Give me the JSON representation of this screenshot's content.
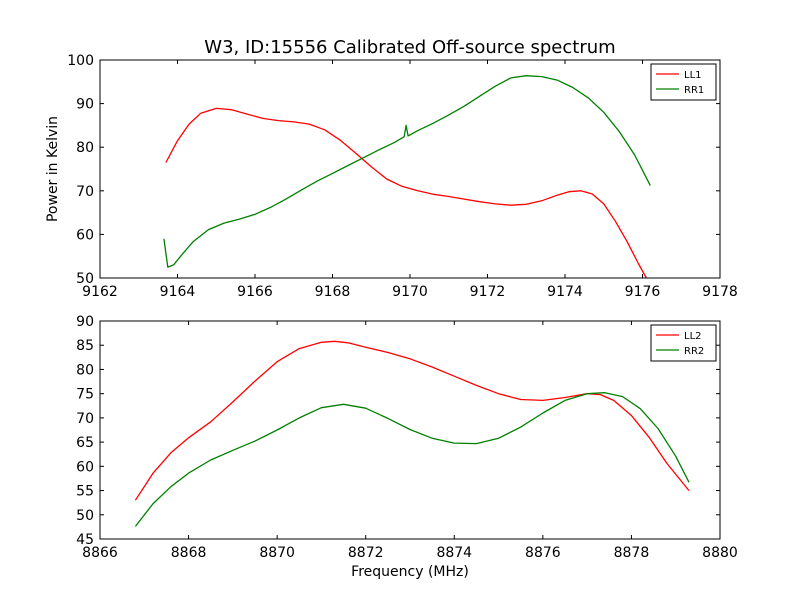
{
  "figure_title": "W3, ID:15556 Calibrated Off-source spectrum",
  "chart_data": [
    {
      "type": "line",
      "title": "W3, ID:15556 Calibrated Off-source spectrum",
      "xlabel": "",
      "ylabel": "Power in Kelvin",
      "xlim": [
        9162,
        9178
      ],
      "ylim": [
        50,
        100
      ],
      "xticks": [
        9162,
        9164,
        9166,
        9168,
        9170,
        9172,
        9174,
        9176,
        9178
      ],
      "yticks": [
        50,
        60,
        70,
        80,
        90,
        100
      ],
      "grid": false,
      "legend_position": "top-right",
      "series": [
        {
          "name": "LL1",
          "color": "#ff0000",
          "x": [
            9163.7,
            9164.0,
            9164.3,
            9164.6,
            9165.0,
            9165.4,
            9165.8,
            9166.2,
            9166.6,
            9167.0,
            9167.4,
            9167.8,
            9168.2,
            9168.6,
            9169.0,
            9169.4,
            9169.8,
            9170.2,
            9170.6,
            9171.0,
            9171.4,
            9171.8,
            9172.2,
            9172.6,
            9173.0,
            9173.4,
            9173.8,
            9174.1,
            9174.4,
            9174.7,
            9175.0,
            9175.3,
            9175.6,
            9175.9,
            9176.1
          ],
          "y": [
            76.5,
            81.5,
            85.3,
            87.8,
            88.9,
            88.6,
            87.6,
            86.6,
            86.1,
            85.8,
            85.3,
            84.0,
            81.6,
            78.6,
            75.5,
            72.7,
            71.0,
            70.0,
            69.2,
            68.7,
            68.1,
            67.5,
            67.0,
            66.7,
            66.9,
            67.7,
            69.0,
            69.8,
            70.0,
            69.3,
            67.0,
            63.0,
            58.4,
            53.2,
            50.0
          ]
        },
        {
          "name": "RR1",
          "color": "#008000",
          "x": [
            9163.65,
            9163.75,
            9163.9,
            9164.1,
            9164.4,
            9164.8,
            9165.2,
            9165.6,
            9166.0,
            9166.4,
            9166.8,
            9167.2,
            9167.6,
            9168.0,
            9168.4,
            9168.8,
            9169.2,
            9169.6,
            9169.85,
            9169.9,
            9169.95,
            9170.2,
            9170.6,
            9171.0,
            9171.4,
            9171.8,
            9172.2,
            9172.6,
            9173.0,
            9173.4,
            9173.8,
            9174.2,
            9174.6,
            9175.0,
            9175.4,
            9175.8,
            9176.2
          ],
          "y": [
            59.0,
            52.5,
            53.0,
            55.2,
            58.3,
            61.1,
            62.6,
            63.5,
            64.6,
            66.2,
            68.1,
            70.2,
            72.2,
            74.0,
            75.8,
            77.6,
            79.4,
            81.1,
            82.4,
            85.0,
            82.6,
            83.8,
            85.5,
            87.4,
            89.4,
            91.7,
            94.0,
            95.9,
            96.4,
            96.2,
            95.4,
            93.7,
            91.3,
            88.0,
            83.6,
            78.2,
            71.2
          ]
        }
      ]
    },
    {
      "type": "line",
      "title": "",
      "xlabel": "Frequency (MHz)",
      "ylabel": "",
      "xlim": [
        8866,
        8880
      ],
      "ylim": [
        45,
        90
      ],
      "xticks": [
        8866,
        8868,
        8870,
        8872,
        8874,
        8876,
        8878,
        8880
      ],
      "yticks": [
        45,
        50,
        55,
        60,
        65,
        70,
        75,
        80,
        85,
        90
      ],
      "grid": false,
      "legend_position": "top-right",
      "series": [
        {
          "name": "LL2",
          "color": "#ff0000",
          "x": [
            8866.8,
            8867.2,
            8867.6,
            8868.0,
            8868.5,
            8869.0,
            8869.5,
            8870.0,
            8870.5,
            8871.0,
            8871.3,
            8871.6,
            8872.0,
            8872.5,
            8873.0,
            8873.5,
            8874.0,
            8874.5,
            8875.0,
            8875.5,
            8876.0,
            8876.5,
            8877.0,
            8877.3,
            8877.6,
            8878.0,
            8878.4,
            8878.8,
            8879.3
          ],
          "y": [
            53.0,
            58.6,
            62.8,
            65.9,
            69.2,
            73.3,
            77.6,
            81.6,
            84.3,
            85.6,
            85.8,
            85.5,
            84.6,
            83.5,
            82.2,
            80.5,
            78.6,
            76.7,
            75.0,
            73.8,
            73.6,
            74.2,
            75.0,
            74.8,
            73.6,
            70.5,
            66.0,
            60.6,
            55.0
          ]
        },
        {
          "name": "RR2",
          "color": "#008000",
          "x": [
            8866.8,
            8867.2,
            8867.6,
            8868.0,
            8868.5,
            8869.0,
            8869.5,
            8870.0,
            8870.5,
            8871.0,
            8871.5,
            8872.0,
            8872.5,
            8873.0,
            8873.5,
            8874.0,
            8874.5,
            8875.0,
            8875.5,
            8876.0,
            8876.5,
            8877.0,
            8877.4,
            8877.8,
            8878.2,
            8878.6,
            8879.0,
            8879.3
          ],
          "y": [
            47.6,
            52.3,
            55.8,
            58.6,
            61.3,
            63.3,
            65.2,
            67.5,
            70.0,
            72.1,
            72.8,
            72.0,
            69.9,
            67.6,
            65.8,
            64.8,
            64.7,
            65.8,
            68.1,
            71.0,
            73.6,
            75.0,
            75.2,
            74.4,
            71.9,
            67.8,
            62.1,
            56.7
          ]
        }
      ]
    }
  ]
}
